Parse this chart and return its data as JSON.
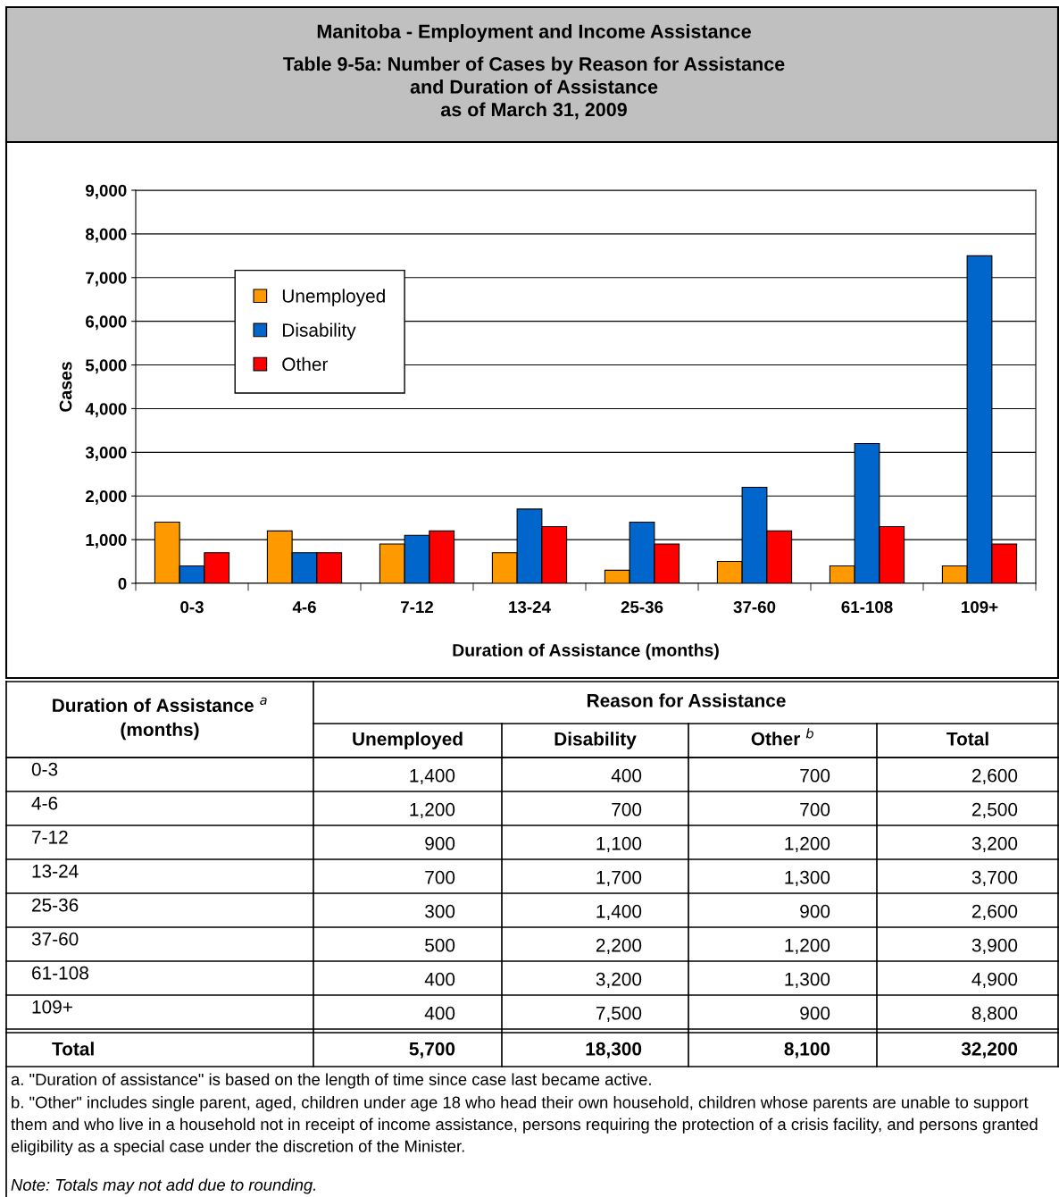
{
  "chart_data": [
    {
      "type": "bar",
      "title": "Manitoba - Employment and Income Assistance",
      "subtitle": "Table 9-5a: Number of Cases by Reason for Assistance\nand Duration of Assistance\nas of March 31, 2009",
      "xlabel": "Duration of Assistance (months)",
      "ylabel": "Cases",
      "categories": [
        "0-3",
        "4-6",
        "7-12",
        "13-24",
        "25-36",
        "37-60",
        "61-108",
        "109+"
      ],
      "series": [
        {
          "name": "Unemployed",
          "color": "#ff9900",
          "values": [
            1400,
            1200,
            900,
            700,
            300,
            500,
            400,
            400
          ]
        },
        {
          "name": "Disability",
          "color": "#0066cc",
          "values": [
            400,
            700,
            1100,
            1700,
            1400,
            2200,
            3200,
            7500
          ]
        },
        {
          "name": "Other",
          "color": "#ff0000",
          "values": [
            700,
            700,
            1200,
            1300,
            900,
            1200,
            1300,
            900
          ]
        }
      ],
      "ylim": [
        0,
        9000
      ],
      "yticks": [
        {
          "value": 0,
          "label": "0"
        },
        {
          "value": 1000,
          "label": "1,000"
        },
        {
          "value": 2000,
          "label": "2,000"
        },
        {
          "value": 3000,
          "label": "3,000"
        },
        {
          "value": 4000,
          "label": "4,000"
        },
        {
          "value": 5000,
          "label": "5,000"
        },
        {
          "value": 6000,
          "label": "6,000"
        },
        {
          "value": 7000,
          "label": "7,000"
        },
        {
          "value": 8000,
          "label": "8,000"
        },
        {
          "value": 9000,
          "label": "9,000"
        }
      ],
      "grid": "y",
      "legend": "top left"
    },
    {
      "type": "other",
      "categories": [
        "0-3",
        "4-6",
        "7-12",
        "13-24",
        "25-36",
        "37-60",
        "61-108",
        "109+",
        "Total"
      ],
      "series": [
        {
          "name": "Unemployed",
          "values": [
            1400,
            1200,
            900,
            700,
            300,
            500,
            400,
            400,
            5700
          ],
          "value_labels": [
            "1,400",
            "1,200",
            "900",
            "700",
            "300",
            "500",
            "400",
            "400",
            "5,700"
          ]
        },
        {
          "name": "Disability",
          "values": [
            400,
            700,
            1100,
            1700,
            1400,
            2200,
            3200,
            7500,
            18300
          ],
          "value_labels": [
            "400",
            "700",
            "1,100",
            "1,700",
            "1,400",
            "2,200",
            "3,200",
            "7,500",
            "18,300"
          ]
        },
        {
          "name": "Other $^{b}$",
          "values": [
            700,
            700,
            1200,
            1300,
            900,
            1200,
            1300,
            900,
            8100
          ],
          "value_labels": [
            "700",
            "700",
            "1,200",
            "1,300",
            "900",
            "1,200",
            "1,300",
            "900",
            "8,100"
          ]
        },
        {
          "name": "Total",
          "values": [
            2600,
            2500,
            3200,
            3700,
            2600,
            3900,
            4900,
            8800,
            32200
          ],
          "value_labels": [
            "2,600",
            "2,500",
            "3,200",
            "3,700",
            "2,600",
            "3,900",
            "4,900",
            "8,800",
            "32,200"
          ]
        }
      ],
      "annotations": [
        "Duration of Assistance $^{a}$\n(months)",
        "Reason for Assistance",
        "a. \"Duration of assistance\" is based on the length of time since case last became active.",
        "b. \"Other\" includes single parent, aged, children under age 18 who head their own household, children whose parents are unable to support them and who live in a household not in receipt of income assistance, persons requiring the protection of a crisis facility, and persons granted eligibility as a special case under the discretion of the Minister.",
        "Note: Totals may not add due to rounding."
      ]
    }
  ]
}
